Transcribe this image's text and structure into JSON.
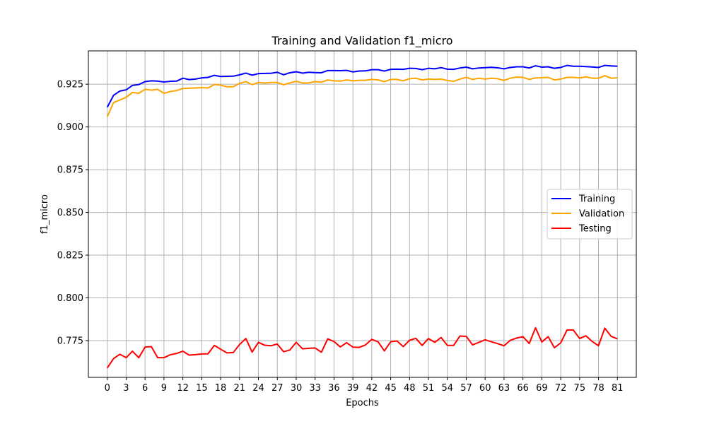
{
  "chart_data": {
    "type": "line",
    "title": "Training and Validation f1_micro",
    "xlabel": "Epochs",
    "ylabel": "f1_micro",
    "xlim": [
      -3.0,
      84.0
    ],
    "ylim": [
      0.7535,
      0.9445
    ],
    "xticks": [
      0,
      3,
      6,
      9,
      12,
      15,
      18,
      21,
      24,
      27,
      30,
      33,
      36,
      39,
      42,
      45,
      48,
      51,
      54,
      57,
      60,
      63,
      66,
      69,
      72,
      75,
      78,
      81
    ],
    "yticks": [
      0.775,
      0.8,
      0.825,
      0.85,
      0.875,
      0.9,
      0.925
    ],
    "ytick_labels": [
      "0.775",
      "0.800",
      "0.825",
      "0.850",
      "0.875",
      "0.900",
      "0.925"
    ],
    "grid": true,
    "legend_position": "center-right",
    "series": [
      {
        "name": "Training",
        "color": "#0000ff",
        "values": [
          0.9115,
          0.9185,
          0.921,
          0.9217,
          0.9243,
          0.9248,
          0.9265,
          0.927,
          0.9268,
          0.9263,
          0.9267,
          0.9268,
          0.9285,
          0.9277,
          0.928,
          0.9287,
          0.929,
          0.9302,
          0.9295,
          0.9296,
          0.9297,
          0.9305,
          0.9315,
          0.9303,
          0.9312,
          0.9313,
          0.9314,
          0.932,
          0.9305,
          0.9317,
          0.9323,
          0.9315,
          0.932,
          0.9318,
          0.9317,
          0.933,
          0.933,
          0.9329,
          0.9331,
          0.9322,
          0.9327,
          0.9328,
          0.9335,
          0.9335,
          0.9327,
          0.9337,
          0.9338,
          0.9337,
          0.9343,
          0.9342,
          0.9335,
          0.9343,
          0.934,
          0.9347,
          0.9338,
          0.9337,
          0.9345,
          0.935,
          0.934,
          0.9345,
          0.9347,
          0.9349,
          0.9346,
          0.934,
          0.9348,
          0.9352,
          0.9352,
          0.9345,
          0.9358,
          0.935,
          0.9352,
          0.9343,
          0.9348,
          0.936,
          0.9355,
          0.9355,
          0.9353,
          0.9351,
          0.9348,
          0.936,
          0.9357,
          0.9355
        ]
      },
      {
        "name": "Validation",
        "color": "#ffa500",
        "values": [
          0.906,
          0.9143,
          0.9158,
          0.9173,
          0.9202,
          0.9197,
          0.922,
          0.9215,
          0.922,
          0.9197,
          0.9207,
          0.9213,
          0.9225,
          0.9227,
          0.9228,
          0.923,
          0.9228,
          0.9248,
          0.9245,
          0.9235,
          0.9235,
          0.9255,
          0.9265,
          0.9248,
          0.926,
          0.9257,
          0.926,
          0.926,
          0.9247,
          0.9258,
          0.9267,
          0.9257,
          0.9258,
          0.9265,
          0.9262,
          0.9275,
          0.927,
          0.9268,
          0.9275,
          0.927,
          0.9273,
          0.9273,
          0.9278,
          0.9275,
          0.9265,
          0.9278,
          0.9278,
          0.927,
          0.9282,
          0.9285,
          0.9275,
          0.928,
          0.9278,
          0.928,
          0.9272,
          0.9267,
          0.928,
          0.929,
          0.9278,
          0.9285,
          0.928,
          0.9285,
          0.9282,
          0.9272,
          0.9285,
          0.9292,
          0.929,
          0.9278,
          0.9287,
          0.9288,
          0.929,
          0.9275,
          0.928,
          0.929,
          0.929,
          0.9287,
          0.9293,
          0.9285,
          0.9285,
          0.93,
          0.9285,
          0.9288
        ]
      },
      {
        "name": "Testing",
        "color": "#ff0000",
        "values": [
          0.759,
          0.7645,
          0.767,
          0.765,
          0.7688,
          0.765,
          0.7712,
          0.7715,
          0.765,
          0.765,
          0.7667,
          0.7675,
          0.7688,
          0.7665,
          0.7668,
          0.7672,
          0.7673,
          0.7722,
          0.77,
          0.7678,
          0.768,
          0.7727,
          0.7762,
          0.7683,
          0.774,
          0.7723,
          0.772,
          0.773,
          0.7685,
          0.7695,
          0.774,
          0.7702,
          0.7705,
          0.7707,
          0.7682,
          0.776,
          0.7745,
          0.7713,
          0.7738,
          0.7712,
          0.771,
          0.7725,
          0.7757,
          0.7743,
          0.769,
          0.7743,
          0.7748,
          0.7715,
          0.7752,
          0.7763,
          0.7722,
          0.7762,
          0.774,
          0.7768,
          0.7722,
          0.7722,
          0.7777,
          0.7775,
          0.7725,
          0.774,
          0.7755,
          0.7743,
          0.7732,
          0.772,
          0.7752,
          0.7765,
          0.7773,
          0.7733,
          0.7825,
          0.7742,
          0.7773,
          0.7708,
          0.7737,
          0.7812,
          0.7812,
          0.7762,
          0.7778,
          0.7745,
          0.772,
          0.7823,
          0.7775,
          0.776
        ]
      }
    ]
  }
}
